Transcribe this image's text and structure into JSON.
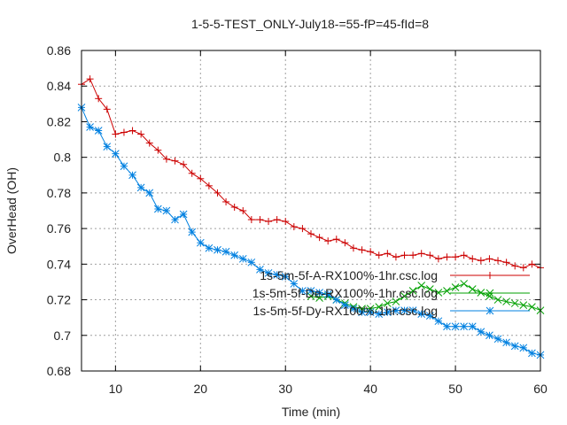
{
  "chart_data": {
    "type": "line",
    "title": "1-5-5-TEST_ONLY-July18-=55-fP=45-fId=8",
    "xlabel": "Time (min)",
    "ylabel": "OverHead (OH)",
    "xlim": [
      6,
      60
    ],
    "ylim": [
      0.68,
      0.86
    ],
    "xticks": [
      10,
      20,
      30,
      40,
      50,
      60
    ],
    "yticks": [
      0.68,
      0.7,
      0.72,
      0.74,
      0.76,
      0.78,
      0.8,
      0.82,
      0.84,
      0.86
    ],
    "ytick_labels": [
      "0.68",
      "0.7",
      "0.72",
      "0.74",
      "0.76",
      "0.78",
      "0.8",
      "0.82",
      "0.84",
      "0.86"
    ],
    "grid": true,
    "legend_position": "right",
    "series": [
      {
        "name": "1s-5m-5f-A-RX100%-1hr.csc.log",
        "color": "#cc0000",
        "marker": "plus",
        "x": [
          6,
          7,
          8,
          9,
          10,
          11,
          12,
          13,
          14,
          15,
          16,
          17,
          18,
          19,
          20,
          21,
          22,
          23,
          24,
          25,
          26,
          27,
          28,
          29,
          30,
          31,
          32,
          33,
          34,
          35,
          36,
          37,
          38,
          39,
          40,
          41,
          42,
          43,
          44,
          45,
          46,
          47,
          48,
          49,
          50,
          51,
          52,
          53,
          54,
          55,
          56,
          57,
          58,
          59,
          60
        ],
        "y": [
          0.841,
          0.844,
          0.833,
          0.827,
          0.813,
          0.814,
          0.815,
          0.813,
          0.808,
          0.804,
          0.799,
          0.798,
          0.796,
          0.791,
          0.788,
          0.784,
          0.78,
          0.775,
          0.772,
          0.77,
          0.765,
          0.765,
          0.764,
          0.765,
          0.764,
          0.761,
          0.76,
          0.757,
          0.755,
          0.753,
          0.754,
          0.752,
          0.749,
          0.748,
          0.747,
          0.745,
          0.746,
          0.744,
          0.745,
          0.745,
          0.746,
          0.745,
          0.743,
          0.744,
          0.744,
          0.745,
          0.743,
          0.742,
          0.743,
          0.742,
          0.741,
          0.739,
          0.738,
          0.74,
          0.738
        ]
      },
      {
        "name": "1s-5m-5f-De-RX100%-1hr.csc.log",
        "color": "#00a000",
        "marker": "cross",
        "x": [
          33,
          34,
          35,
          36,
          37,
          38,
          39,
          40,
          41,
          42,
          43,
          44,
          45,
          46,
          47,
          48,
          49,
          50,
          51,
          52,
          53,
          54,
          55,
          56,
          57,
          58,
          59,
          60
        ],
        "y": [
          0.722,
          0.721,
          0.722,
          0.72,
          0.718,
          0.716,
          0.715,
          0.715,
          0.716,
          0.718,
          0.719,
          0.722,
          0.725,
          0.728,
          0.726,
          0.724,
          0.725,
          0.727,
          0.729,
          0.726,
          0.724,
          0.722,
          0.72,
          0.719,
          0.718,
          0.717,
          0.716,
          0.714
        ]
      },
      {
        "name": "1s-5m-5f-Dy-RX100%-1hr.csc.log",
        "color": "#0080e0",
        "marker": "star",
        "x": [
          6,
          7,
          8,
          9,
          10,
          11,
          12,
          13,
          14,
          15,
          16,
          17,
          18,
          19,
          20,
          21,
          22,
          23,
          24,
          25,
          26,
          27,
          28,
          29,
          30,
          31,
          32,
          33,
          34,
          35,
          36,
          37,
          38,
          39,
          40,
          41,
          42,
          43,
          44,
          45,
          46,
          47,
          48,
          49,
          50,
          51,
          52,
          53,
          54,
          55,
          56,
          57,
          58,
          59,
          60
        ],
        "y": [
          0.828,
          0.817,
          0.815,
          0.806,
          0.802,
          0.795,
          0.79,
          0.783,
          0.78,
          0.771,
          0.77,
          0.765,
          0.768,
          0.758,
          0.752,
          0.749,
          0.748,
          0.747,
          0.745,
          0.743,
          0.741,
          0.737,
          0.735,
          0.734,
          0.733,
          0.729,
          0.725,
          0.725,
          0.724,
          0.723,
          0.72,
          0.717,
          0.715,
          0.713,
          0.713,
          0.712,
          0.713,
          0.714,
          0.714,
          0.714,
          0.712,
          0.711,
          0.708,
          0.705,
          0.705,
          0.705,
          0.705,
          0.702,
          0.7,
          0.698,
          0.696,
          0.694,
          0.693,
          0.69,
          0.689
        ]
      }
    ]
  }
}
